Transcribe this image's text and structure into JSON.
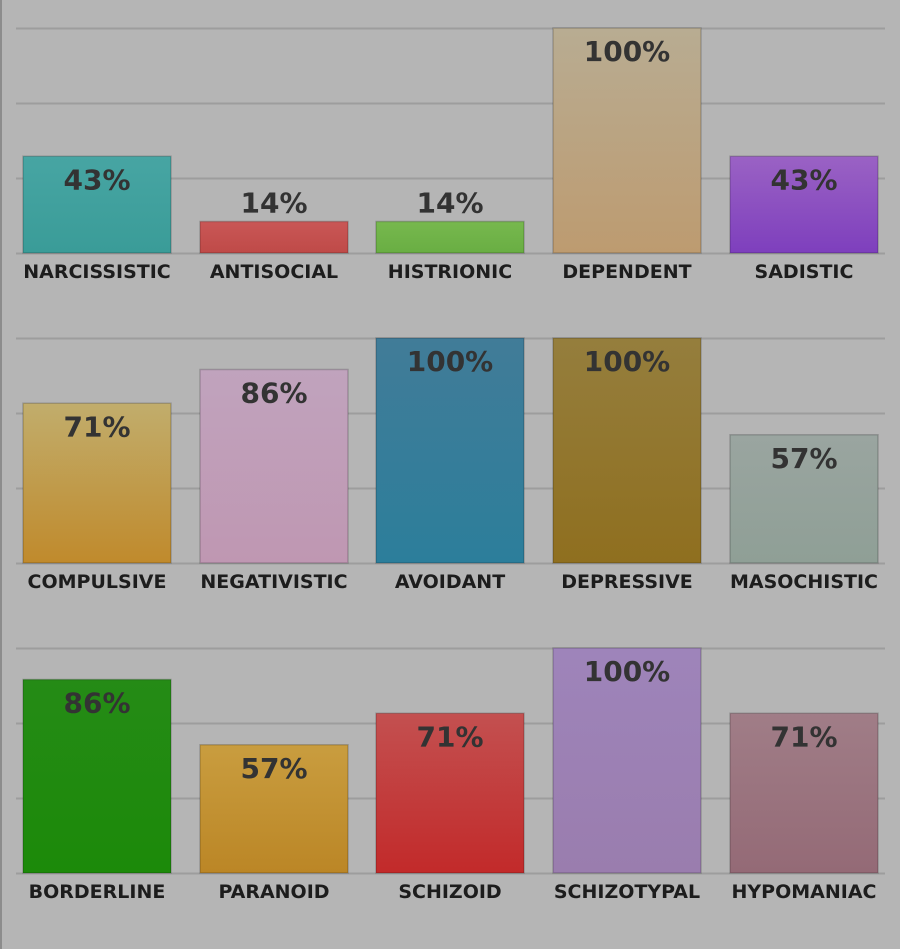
{
  "chart_data": {
    "type": "bar",
    "ylim": [
      0,
      100
    ],
    "grid": true,
    "value_suffix": "%",
    "colors": {
      "background": "#b5b5b5",
      "grid": "#9d9d9d",
      "label": "#1d1d1d",
      "value_label": "#333333"
    },
    "panels": [
      {
        "categories": [
          "NARCISSISTIC",
          "ANTISOCIAL",
          "HISTRIONIC",
          "DEPENDENT",
          "SADISTIC"
        ],
        "values": [
          43,
          14,
          14,
          100,
          43
        ],
        "colors": [
          [
            "#47a5a3",
            "#3a9c98"
          ],
          [
            "#c95756",
            "#bf4a48"
          ],
          [
            "#77b84e",
            "#69ae43"
          ],
          [
            "#b8ac92",
            "#bd9b70"
          ],
          [
            "#9a62c4",
            "#7e3fbd"
          ]
        ]
      },
      {
        "categories": [
          "COMPULSIVE",
          "NEGATIVISTIC",
          "AVOIDANT",
          "DEPRESSIVE",
          "MASOCHISTIC"
        ],
        "values": [
          71,
          86,
          100,
          100,
          57
        ],
        "colors": [
          [
            "#c1ad6c",
            "#c08a2c"
          ],
          [
            "#c0a3bd",
            "#bf97b2"
          ],
          [
            "#417c98",
            "#2c7e9b"
          ],
          [
            "#957e3d",
            "#8f6f1f"
          ],
          [
            "#9aa5a0",
            "#8f9f96"
          ]
        ]
      },
      {
        "categories": [
          "BORDERLINE",
          "PARANOID",
          "SCHIZOID",
          "SCHIZOTYPAL",
          "HYPOMANIAC"
        ],
        "values": [
          86,
          57,
          71,
          100,
          71
        ],
        "colors": [
          [
            "#258b16",
            "#1c8a09"
          ],
          [
            "#c99d3f",
            "#bb8626"
          ],
          [
            "#c35050",
            "#c22a2a"
          ],
          [
            "#9e84ba",
            "#9a7dae"
          ],
          [
            "#a07d87",
            "#946a76"
          ]
        ]
      }
    ]
  }
}
